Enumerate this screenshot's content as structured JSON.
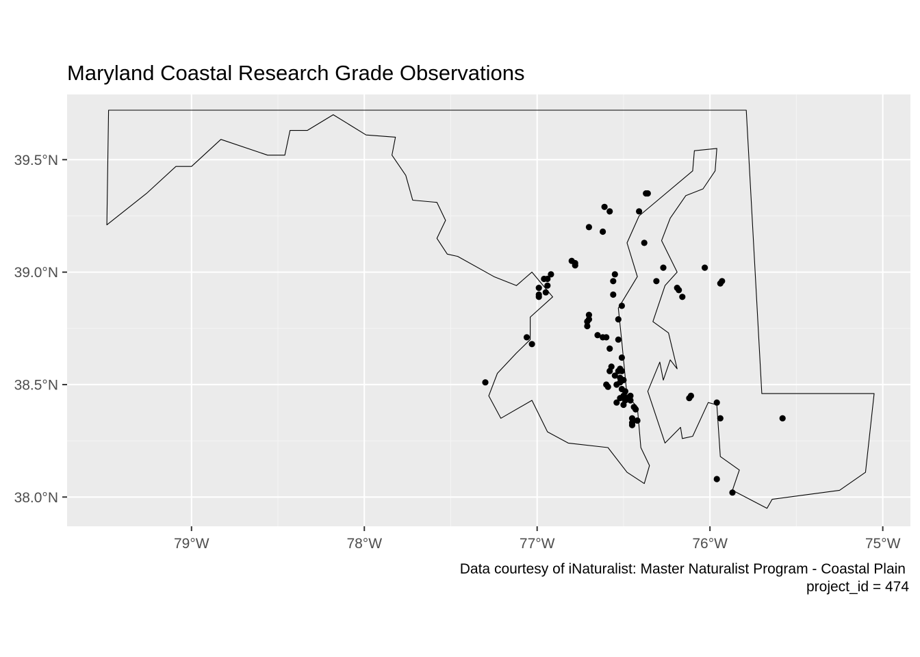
{
  "chart_data": {
    "type": "scatter",
    "title": "Maryland Coastal Research Grade Observations",
    "caption": [
      "Data courtesy of iNaturalist: Master Naturalist Program - Coastal Plain",
      "project_id = 474"
    ],
    "xlabel": "",
    "ylabel": "",
    "xlim": [
      -79.72,
      -74.84
    ],
    "ylim": [
      37.87,
      39.79
    ],
    "x_ticks": [
      -79,
      -78,
      -77,
      -76,
      -75
    ],
    "x_tick_labels": [
      "79°W",
      "78°W",
      "77°W",
      "76°W",
      "75°W"
    ],
    "y_ticks": [
      38.0,
      38.5,
      39.0,
      39.5
    ],
    "y_tick_labels": [
      "38.0°N",
      "38.5°N",
      "39.0°N",
      "39.5°N"
    ],
    "grid": true,
    "legend": "none",
    "colors": {
      "panel": "#ebebeb",
      "grid": "#ffffff",
      "points": "#000000",
      "outline": "#000000"
    },
    "state_outline": [
      [
        -79.49,
        39.21
      ],
      [
        -79.48,
        39.72
      ],
      [
        -75.79,
        39.72
      ],
      [
        -75.7,
        38.46
      ],
      [
        -75.05,
        38.46
      ],
      [
        -75.1,
        38.11
      ],
      [
        -75.25,
        38.03
      ],
      [
        -75.64,
        37.99
      ],
      [
        -75.67,
        37.95
      ],
      [
        -75.87,
        38.03
      ],
      [
        -75.83,
        38.12
      ],
      [
        -75.94,
        38.18
      ],
      [
        -75.96,
        38.41
      ],
      [
        -76.01,
        38.42
      ],
      [
        -76.1,
        38.27
      ],
      [
        -76.16,
        38.26
      ],
      [
        -76.17,
        38.31
      ],
      [
        -76.26,
        38.24
      ],
      [
        -76.36,
        38.47
      ],
      [
        -76.29,
        38.6
      ],
      [
        -76.27,
        38.52
      ],
      [
        -76.23,
        38.61
      ],
      [
        -76.19,
        38.57
      ],
      [
        -76.24,
        38.73
      ],
      [
        -76.33,
        38.78
      ],
      [
        -76.26,
        38.94
      ],
      [
        -76.19,
        39.0
      ],
      [
        -76.28,
        39.14
      ],
      [
        -76.23,
        39.24
      ],
      [
        -76.14,
        39.34
      ],
      [
        -76.04,
        39.37
      ],
      [
        -75.97,
        39.45
      ],
      [
        -75.96,
        39.55
      ],
      [
        -76.09,
        39.54
      ],
      [
        -76.1,
        39.45
      ],
      [
        -76.41,
        39.25
      ],
      [
        -76.48,
        39.13
      ],
      [
        -76.42,
        38.98
      ],
      [
        -76.53,
        38.84
      ],
      [
        -76.51,
        38.69
      ],
      [
        -76.48,
        38.45
      ],
      [
        -76.42,
        38.4
      ],
      [
        -76.4,
        38.22
      ],
      [
        -76.35,
        38.14
      ],
      [
        -76.38,
        38.06
      ],
      [
        -76.48,
        38.11
      ],
      [
        -76.59,
        38.22
      ],
      [
        -76.82,
        38.24
      ],
      [
        -76.94,
        38.29
      ],
      [
        -77.03,
        38.43
      ],
      [
        -77.21,
        38.35
      ],
      [
        -77.28,
        38.45
      ],
      [
        -77.23,
        38.55
      ],
      [
        -77.12,
        38.64
      ],
      [
        -77.04,
        38.7
      ],
      [
        -77.04,
        38.8
      ],
      [
        -76.91,
        38.89
      ],
      [
        -77.03,
        39.0
      ],
      [
        -77.12,
        38.94
      ],
      [
        -77.25,
        38.98
      ],
      [
        -77.46,
        39.07
      ],
      [
        -77.52,
        39.08
      ],
      [
        -77.58,
        39.15
      ],
      [
        -77.53,
        39.23
      ],
      [
        -77.58,
        39.31
      ],
      [
        -77.72,
        39.32
      ],
      [
        -77.76,
        39.43
      ],
      [
        -77.84,
        39.52
      ],
      [
        -77.82,
        39.6
      ],
      [
        -77.99,
        39.61
      ],
      [
        -78.18,
        39.7
      ],
      [
        -78.33,
        39.63
      ],
      [
        -78.43,
        39.63
      ],
      [
        -78.46,
        39.52
      ],
      [
        -78.56,
        39.52
      ],
      [
        -78.83,
        39.59
      ],
      [
        -79.0,
        39.47
      ],
      [
        -79.09,
        39.47
      ],
      [
        -79.26,
        39.35
      ],
      [
        -79.49,
        39.21
      ]
    ],
    "points": [
      [
        -76.37,
        39.35
      ],
      [
        -76.36,
        39.35
      ],
      [
        -76.41,
        39.27
      ],
      [
        -76.61,
        39.29
      ],
      [
        -76.58,
        39.27
      ],
      [
        -76.7,
        39.2
      ],
      [
        -76.62,
        39.18
      ],
      [
        -76.38,
        39.13
      ],
      [
        -76.03,
        39.02
      ],
      [
        -75.93,
        38.96
      ],
      [
        -75.94,
        38.95
      ],
      [
        -76.27,
        39.02
      ],
      [
        -76.31,
        38.96
      ],
      [
        -76.19,
        38.93
      ],
      [
        -76.18,
        38.92
      ],
      [
        -76.16,
        38.89
      ],
      [
        -76.8,
        39.05
      ],
      [
        -76.78,
        39.04
      ],
      [
        -76.78,
        39.03
      ],
      [
        -76.92,
        38.99
      ],
      [
        -76.96,
        38.97
      ],
      [
        -76.94,
        38.97
      ],
      [
        -76.94,
        38.94
      ],
      [
        -76.95,
        38.91
      ],
      [
        -76.99,
        38.93
      ],
      [
        -76.99,
        38.9
      ],
      [
        -76.99,
        38.89
      ],
      [
        -76.55,
        38.99
      ],
      [
        -76.56,
        38.96
      ],
      [
        -76.56,
        38.9
      ],
      [
        -76.51,
        38.85
      ],
      [
        -76.7,
        38.81
      ],
      [
        -76.7,
        38.79
      ],
      [
        -76.71,
        38.78
      ],
      [
        -76.71,
        38.76
      ],
      [
        -76.53,
        38.79
      ],
      [
        -76.65,
        38.72
      ],
      [
        -76.62,
        38.71
      ],
      [
        -76.6,
        38.71
      ],
      [
        -76.53,
        38.7
      ],
      [
        -76.58,
        38.66
      ],
      [
        -76.51,
        38.62
      ],
      [
        -77.06,
        38.71
      ],
      [
        -77.03,
        38.68
      ],
      [
        -76.57,
        38.58
      ],
      [
        -76.58,
        38.56
      ],
      [
        -76.52,
        38.57
      ],
      [
        -76.53,
        38.56
      ],
      [
        -76.51,
        38.56
      ],
      [
        -76.55,
        38.54
      ],
      [
        -76.52,
        38.53
      ],
      [
        -76.5,
        38.52
      ],
      [
        -76.52,
        38.51
      ],
      [
        -76.54,
        38.5
      ],
      [
        -76.6,
        38.5
      ],
      [
        -76.59,
        38.49
      ],
      [
        -76.51,
        38.48
      ],
      [
        -76.49,
        38.47
      ],
      [
        -76.5,
        38.45
      ],
      [
        -76.46,
        38.45
      ],
      [
        -76.48,
        38.44
      ],
      [
        -76.52,
        38.44
      ],
      [
        -76.49,
        38.43
      ],
      [
        -76.46,
        38.43
      ],
      [
        -76.54,
        38.42
      ],
      [
        -76.5,
        38.41
      ],
      [
        -76.44,
        38.4
      ],
      [
        -76.43,
        38.39
      ],
      [
        -76.45,
        38.35
      ],
      [
        -76.42,
        38.34
      ],
      [
        -76.45,
        38.33
      ],
      [
        -76.45,
        38.32
      ],
      [
        -77.3,
        38.51
      ],
      [
        -76.12,
        38.44
      ],
      [
        -76.11,
        38.45
      ],
      [
        -75.96,
        38.42
      ],
      [
        -75.94,
        38.35
      ],
      [
        -75.58,
        38.35
      ],
      [
        -75.96,
        38.08
      ],
      [
        -75.87,
        38.02
      ]
    ]
  }
}
